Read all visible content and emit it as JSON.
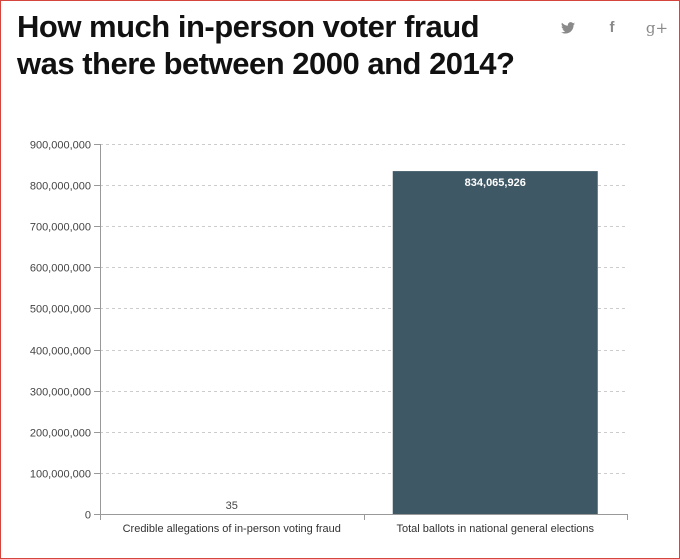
{
  "title": "How much in-person voter fraud was there between 2000 and 2014?",
  "share": {
    "twitter_icon": "twitter-bird-icon",
    "facebook_icon": "facebook-f-icon",
    "facebook_glyph": "f",
    "googleplus_icon": "google-plus-icon",
    "googleplus_glyph": "g+"
  },
  "colors": {
    "bar": "#3f5866",
    "frame": "#d6453d",
    "grid": "#cccccc",
    "axis": "#999999",
    "share_icons": "#8a8a8a"
  },
  "chart_data": {
    "type": "bar",
    "categories": [
      "Credible allegations of in-person voting fraud",
      "Total ballots in national general elections"
    ],
    "values": [
      35,
      834065926
    ],
    "data_labels": [
      "35",
      "834,065,926"
    ],
    "title": "",
    "xlabel": "",
    "ylabel": "",
    "ylim": [
      0,
      900000000
    ],
    "yticks": [
      0,
      100000000,
      200000000,
      300000000,
      400000000,
      500000000,
      600000000,
      700000000,
      800000000,
      900000000
    ],
    "ytick_labels": [
      "0",
      "100,000,000",
      "200,000,000",
      "300,000,000",
      "400,000,000",
      "500,000,000",
      "600,000,000",
      "700,000,000",
      "800,000,000",
      "900,000,000"
    ],
    "grid": true,
    "legend": "none"
  }
}
